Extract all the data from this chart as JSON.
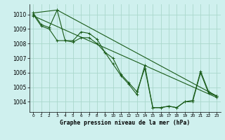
{
  "title": "Graphe pression niveau de la mer (hPa)",
  "bg_color": "#cff0ee",
  "grid_color": "#aad8cc",
  "line_color": "#1a5c1a",
  "xlim": [
    -0.5,
    23.5
  ],
  "ylim": [
    1003.3,
    1010.7
  ],
  "yticks": [
    1004,
    1005,
    1006,
    1007,
    1008,
    1009,
    1010
  ],
  "xticks": [
    0,
    1,
    2,
    3,
    4,
    5,
    6,
    7,
    8,
    9,
    10,
    11,
    12,
    13,
    14,
    15,
    16,
    17,
    18,
    19,
    20,
    21,
    22,
    23
  ],
  "series": [
    {
      "x": [
        0,
        1,
        2,
        3,
        4,
        5,
        6,
        7,
        8,
        9,
        10,
        11,
        12,
        13,
        14,
        15,
        16,
        17,
        18,
        19,
        20,
        21,
        22,
        23
      ],
      "y": [
        1010.1,
        1009.3,
        1009.1,
        1010.3,
        1008.2,
        1008.2,
        1008.8,
        1008.7,
        1008.3,
        1007.4,
        1006.6,
        1005.8,
        1005.2,
        1004.5,
        1006.5,
        1003.6,
        1003.6,
        1003.7,
        1003.6,
        1004.0,
        1004.1,
        1006.1,
        1004.7,
        1004.4
      ]
    },
    {
      "x": [
        0,
        1,
        2,
        3,
        4,
        5,
        6,
        7,
        8,
        9,
        10,
        11,
        12,
        13,
        14,
        15,
        16,
        17,
        18,
        19,
        20,
        21,
        22,
        23
      ],
      "y": [
        1010.0,
        1009.2,
        1009.0,
        1008.2,
        1008.2,
        1008.1,
        1008.4,
        1008.4,
        1008.0,
        1007.4,
        1007.0,
        1005.9,
        1005.3,
        1004.7,
        1006.3,
        1003.6,
        1003.6,
        1003.7,
        1003.6,
        1004.0,
        1004.0,
        1006.0,
        1004.6,
        1004.4
      ]
    },
    {
      "x": [
        0,
        3,
        23
      ],
      "y": [
        1010.1,
        1010.3,
        1004.4
      ]
    },
    {
      "x": [
        0,
        23
      ],
      "y": [
        1009.9,
        1004.3
      ]
    }
  ]
}
